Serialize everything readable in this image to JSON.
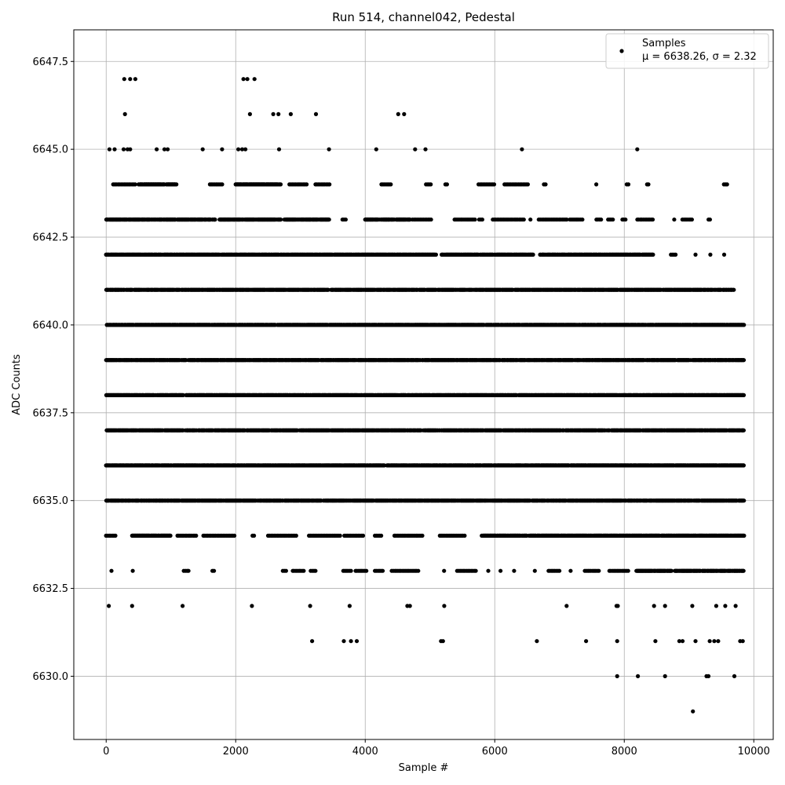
{
  "chart_data": {
    "type": "scatter",
    "title": "Run 514, channel042, Pedestal",
    "xlabel": "Sample #",
    "ylabel": "ADC Counts",
    "xlim": [
      -500,
      10300
    ],
    "ylim": [
      6628.2,
      6648.4
    ],
    "xticks": [
      0,
      2000,
      4000,
      6000,
      8000,
      10000
    ],
    "xtick_labels": [
      "0",
      "2000",
      "4000",
      "6000",
      "8000",
      "10000"
    ],
    "yticks": [
      6630.0,
      6632.5,
      6635.0,
      6637.5,
      6640.0,
      6642.5,
      6645.0,
      6647.5
    ],
    "ytick_labels": [
      "6630.0",
      "6632.5",
      "6635.0",
      "6637.5",
      "6640.0",
      "6642.5",
      "6645.0",
      "6647.5"
    ],
    "grid": true,
    "legend": {
      "placement": "top-right",
      "entries": [
        {
          "label": "Samples",
          "stats": "μ = 6638.26, σ = 2.32",
          "color": "#000000",
          "marker": "circle"
        }
      ]
    },
    "series": [
      {
        "name": "Samples",
        "color": "#000000",
        "n_samples": 9800,
        "mu": 6638.26,
        "sigma": 2.32,
        "points": [
          [
            40,
            6632
          ],
          [
            400,
            6632
          ],
          [
            1180,
            6632
          ],
          [
            2250,
            6632
          ],
          [
            3150,
            6632
          ],
          [
            3760,
            6632
          ],
          [
            4650,
            6632
          ],
          [
            4690,
            6632
          ],
          [
            5220,
            6632
          ],
          [
            7110,
            6632
          ],
          [
            7880,
            6632
          ],
          [
            7900,
            6632
          ],
          [
            8460,
            6632
          ],
          [
            8630,
            6632
          ],
          [
            9050,
            6632
          ],
          [
            9420,
            6632
          ],
          [
            9560,
            6632
          ],
          [
            9720,
            6632
          ],
          [
            3180,
            6631
          ],
          [
            3670,
            6631
          ],
          [
            3780,
            6631
          ],
          [
            3870,
            6631
          ],
          [
            5170,
            6631
          ],
          [
            5200,
            6631
          ],
          [
            6650,
            6631
          ],
          [
            7410,
            6631
          ],
          [
            7890,
            6631
          ],
          [
            8480,
            6631
          ],
          [
            8850,
            6631
          ],
          [
            8900,
            6631
          ],
          [
            9100,
            6631
          ],
          [
            9320,
            6631
          ],
          [
            9390,
            6631
          ],
          [
            9450,
            6631
          ],
          [
            9790,
            6631
          ],
          [
            9830,
            6631
          ],
          [
            7890,
            6630
          ],
          [
            8210,
            6630
          ],
          [
            8630,
            6630
          ],
          [
            9270,
            6630
          ],
          [
            9300,
            6630
          ],
          [
            9700,
            6630
          ],
          [
            9060,
            6629
          ],
          [
            280,
            6647
          ],
          [
            370,
            6647
          ],
          [
            450,
            6647
          ],
          [
            2120,
            6647
          ],
          [
            2180,
            6647
          ],
          [
            2290,
            6647
          ],
          [
            290,
            6646
          ],
          [
            2220,
            6646
          ],
          [
            2580,
            6646
          ],
          [
            2660,
            6646
          ],
          [
            2850,
            6646
          ],
          [
            3240,
            6646
          ],
          [
            4510,
            6646
          ],
          [
            4600,
            6646
          ],
          [
            50,
            6645
          ],
          [
            130,
            6645
          ],
          [
            270,
            6645
          ],
          [
            330,
            6645
          ],
          [
            370,
            6645
          ],
          [
            780,
            6645
          ],
          [
            900,
            6645
          ],
          [
            950,
            6645
          ],
          [
            1490,
            6645
          ],
          [
            1790,
            6645
          ],
          [
            2040,
            6645
          ],
          [
            2100,
            6645
          ],
          [
            2150,
            6645
          ],
          [
            2670,
            6645
          ],
          [
            3440,
            6645
          ],
          [
            4170,
            6645
          ],
          [
            4770,
            6645
          ],
          [
            4930,
            6645
          ],
          [
            6420,
            6645
          ],
          [
            8200,
            6645
          ]
        ],
        "bands": [
          {
            "y": 6644,
            "x_ranges": [
              [
                110,
                450
              ],
              [
                500,
                1100
              ],
              [
                1600,
                1800
              ],
              [
                2000,
                2700
              ],
              [
                2830,
                3100
              ],
              [
                3230,
                3460
              ],
              [
                4250,
                4400
              ],
              [
                4940,
                5030
              ],
              [
                5240,
                5280
              ],
              [
                5750,
                6000
              ],
              [
                6150,
                6520
              ],
              [
                6760,
                6790
              ],
              [
                7570,
                7590
              ],
              [
                8040,
                8070
              ],
              [
                8350,
                8380
              ],
              [
                9540,
                9610
              ]
            ]
          },
          {
            "y": 6643,
            "x_ranges": [
              [
                0,
                1700
              ],
              [
                1750,
                2700
              ],
              [
                2750,
                3450
              ],
              [
                3650,
                3720
              ],
              [
                4000,
                4700
              ],
              [
                4730,
                5040
              ],
              [
                5380,
                5700
              ],
              [
                5760,
                5810
              ],
              [
                5970,
                6460
              ],
              [
                6550,
                6560
              ],
              [
                6680,
                7120
              ],
              [
                7160,
                7370
              ],
              [
                7570,
                7650
              ],
              [
                7750,
                7830
              ],
              [
                7970,
                8040
              ],
              [
                8200,
                8450
              ],
              [
                8770,
                8790
              ],
              [
                8900,
                9060
              ],
              [
                9300,
                9330
              ]
            ]
          },
          {
            "y": 6642,
            "x_ranges": [
              [
                0,
                5100
              ],
              [
                5180,
                6600
              ],
              [
                6700,
                8450
              ],
              [
                8720,
                8800
              ],
              [
                9100,
                9120
              ],
              [
                9330,
                9350
              ],
              [
                9540,
                9560
              ]
            ]
          },
          {
            "y": 6641,
            "x_ranges": [
              [
                0,
                9700
              ]
            ]
          },
          {
            "y": 6640,
            "x_ranges": [
              [
                0,
                9850
              ]
            ]
          },
          {
            "y": 6639,
            "x_ranges": [
              [
                0,
                9850
              ]
            ]
          },
          {
            "y": 6638,
            "x_ranges": [
              [
                0,
                9850
              ]
            ]
          },
          {
            "y": 6637,
            "x_ranges": [
              [
                0,
                9850
              ]
            ]
          },
          {
            "y": 6636,
            "x_ranges": [
              [
                0,
                9850
              ]
            ]
          },
          {
            "y": 6635,
            "x_ranges": [
              [
                0,
                9850
              ]
            ]
          },
          {
            "y": 6634,
            "x_ranges": [
              [
                0,
                160
              ],
              [
                400,
                1000
              ],
              [
                1100,
                1400
              ],
              [
                1500,
                2000
              ],
              [
                2260,
                2300
              ],
              [
                2500,
                2950
              ],
              [
                3130,
                3620
              ],
              [
                3680,
                3980
              ],
              [
                4150,
                4260
              ],
              [
                4450,
                4900
              ],
              [
                5150,
                5540
              ],
              [
                5800,
                9850
              ]
            ]
          },
          {
            "y": 6633,
            "x_ranges": [
              [
                80,
                90
              ],
              [
                410,
                420
              ],
              [
                1200,
                1290
              ],
              [
                1640,
                1670
              ],
              [
                2730,
                2800
              ],
              [
                2880,
                3050
              ],
              [
                3160,
                3240
              ],
              [
                3660,
                3780
              ],
              [
                3850,
                4030
              ],
              [
                4150,
                4290
              ],
              [
                4410,
                4830
              ],
              [
                5220,
                5240
              ],
              [
                5420,
                5720
              ],
              [
                5900,
                5910
              ],
              [
                6090,
                6100
              ],
              [
                6300,
                6310
              ],
              [
                6620,
                6640
              ],
              [
                6830,
                7000
              ],
              [
                7170,
                7190
              ],
              [
                7390,
                7610
              ],
              [
                7770,
                8060
              ],
              [
                8180,
                8730
              ],
              [
                8780,
                9850
              ]
            ]
          }
        ]
      }
    ]
  }
}
